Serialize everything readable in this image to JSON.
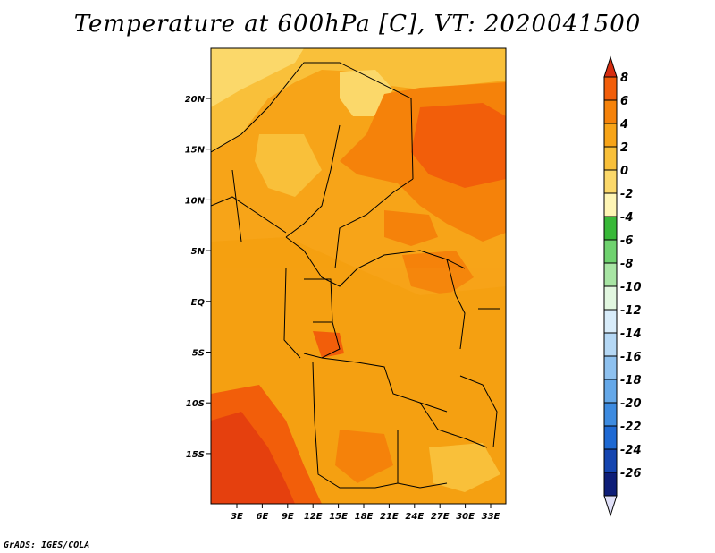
{
  "title": "Temperature at 600hPa [C], VT: 2020041500",
  "credit": "GrADS: IGES/COLA",
  "lat_ticks": [
    "20N",
    "15N",
    "10N",
    "5N",
    "EQ",
    "5S",
    "10S",
    "15S"
  ],
  "lon_ticks": [
    "3E",
    "6E",
    "9E",
    "12E",
    "15E",
    "18E",
    "21E",
    "24E",
    "27E",
    "30E",
    "33E"
  ],
  "colorbar": {
    "labels": [
      "8",
      "6",
      "4",
      "2",
      "0",
      "-2",
      "-4",
      "-6",
      "-8",
      "-10",
      "-12",
      "-14",
      "-16",
      "-18",
      "-20",
      "-22",
      "-24",
      "-26"
    ],
    "colors": [
      "#d62d10",
      "#f25e0a",
      "#f5820a",
      "#f7a418",
      "#f9c03a",
      "#fbd86a",
      "#fef5b5",
      "#38b838",
      "#6fd26f",
      "#a8e5a4",
      "#e2f7e0",
      "#d8ecfa",
      "#b5d8f5",
      "#8ec1ef",
      "#65a8e8",
      "#3d8be0",
      "#1e69d3",
      "#1545b0",
      "#0e1e78",
      "#e0e0f8"
    ]
  }
}
